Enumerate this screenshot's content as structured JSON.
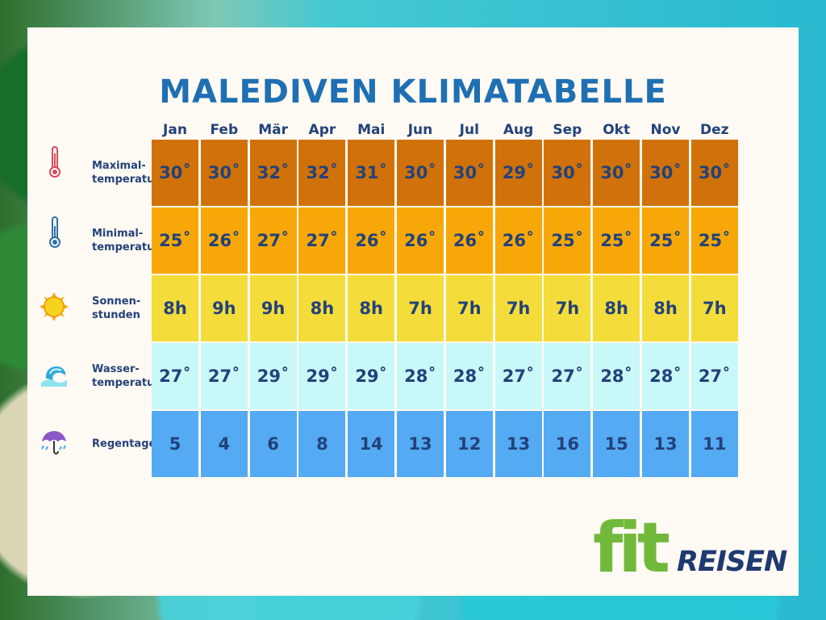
{
  "title": "MALEDIVEN KLIMATABELLE",
  "months": [
    "Jan",
    "Feb",
    "Mär",
    "Apr",
    "Mai",
    "Jun",
    "Jul",
    "Aug",
    "Sep",
    "Okt",
    "Nov",
    "Dez"
  ],
  "rows": [
    {
      "label": "Maximal-\ntemperatur",
      "icon": "thermometer-hot-icon",
      "values": [
        "30˚",
        "30˚",
        "32˚",
        "32˚",
        "31˚",
        "30˚",
        "30˚",
        "29˚",
        "30˚",
        "30˚",
        "30˚",
        "30˚"
      ],
      "color": "#d07209"
    },
    {
      "label": "Minimal-\ntemperatur",
      "icon": "thermometer-cold-icon",
      "values": [
        "25˚",
        "26˚",
        "27˚",
        "27˚",
        "26˚",
        "26˚",
        "26˚",
        "26˚",
        "25˚",
        "25˚",
        "25˚",
        "25˚"
      ],
      "color": "#f7a808"
    },
    {
      "label": "Sonnen-\nstunden",
      "icon": "sun-icon",
      "values": [
        "8h",
        "9h",
        "9h",
        "8h",
        "8h",
        "7h",
        "7h",
        "7h",
        "7h",
        "8h",
        "8h",
        "7h"
      ],
      "color": "#f4dd3a"
    },
    {
      "label": "Wasser-\ntemperatur",
      "icon": "wave-icon",
      "values": [
        "27˚",
        "27˚",
        "29˚",
        "29˚",
        "29˚",
        "28˚",
        "28˚",
        "27˚",
        "27˚",
        "28˚",
        "28˚",
        "27˚"
      ],
      "color": "#c9f8f8"
    },
    {
      "label": "Regentage",
      "icon": "umbrella-rain-icon",
      "values": [
        "5",
        "4",
        "6",
        "8",
        "14",
        "13",
        "12",
        "13",
        "16",
        "15",
        "13",
        "11"
      ],
      "color": "#54aaf3"
    }
  ],
  "logo": {
    "fit": "fit",
    "reisen": "REISEN"
  }
}
